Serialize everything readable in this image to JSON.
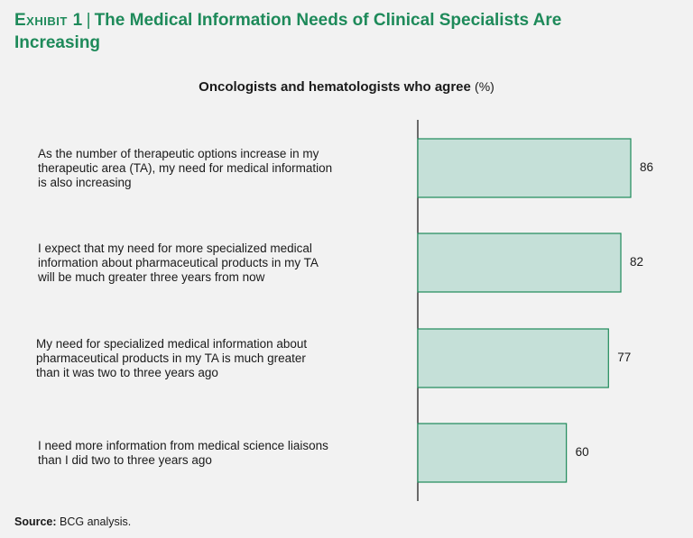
{
  "header": {
    "exhibit": "Exhibit 1",
    "separator": "|",
    "title": "The Medical Information Needs of Clinical Specialists Are Increasing"
  },
  "colors": {
    "accent": "#1e8a5a",
    "bar_fill": "#c5e0d8",
    "bar_stroke": "#1e8a5a",
    "axis": "#222222"
  },
  "chart_data": {
    "type": "bar",
    "orientation": "horizontal",
    "title": "Oncologists and hematologists who agree",
    "title_unit": "(%)",
    "categories": [
      "As the number of therapeutic options increase in my therapeutic area (TA), my need for medical information is also increasing",
      "I expect that my need for more specialized medical information about pharmaceutical products in my TA will be much greater three years from now",
      "My need for specialized medical information about pharmaceutical products in my TA is much greater than it was two to three years ago",
      "I need more information from medical science liaisons than I did two to three years ago"
    ],
    "category_lines": [
      [
        "As the number of therapeutic options increase in my",
        "therapeutic area (TA), my need for medical information",
        "is also increasing"
      ],
      [
        "I expect that my need for more specialized medical",
        "information about pharmaceutical products in my TA",
        "will be much greater three years from now"
      ],
      [
        "My need for specialized medical information about",
        "pharmaceutical products in my TA is much greater",
        "than it was two to three years ago"
      ],
      [
        "I need more information from medical science liaisons",
        "than I did two to three years ago"
      ]
    ],
    "values": [
      86,
      82,
      77,
      60
    ],
    "data_labels": [
      "86",
      "82",
      "77",
      "60"
    ],
    "xlim": [
      0,
      86
    ],
    "grid": false,
    "legend": "none"
  },
  "footer": {
    "source_label": "Source:",
    "source_text": "BCG analysis."
  }
}
